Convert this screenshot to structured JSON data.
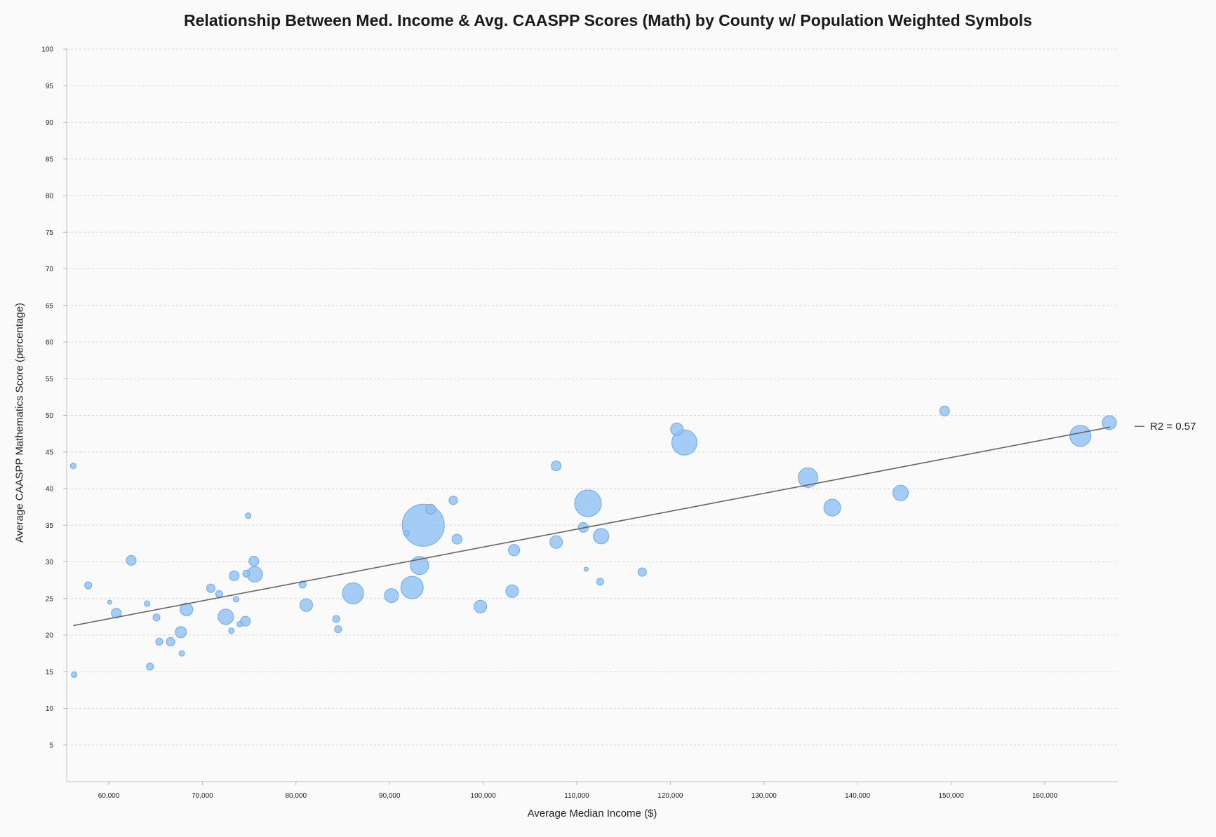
{
  "chart_data": {
    "type": "scatter",
    "title": "Relationship Between Med. Income & Avg. CAASPP Scores (Math) by County w/ Population Weighted Symbols",
    "xlabel": "Average Median Income ($)",
    "ylabel": "Average CAASPP Mathematics Score (percentage)",
    "xlim": [
      55500,
      167800
    ],
    "ylim": [
      0,
      100
    ],
    "x_ticks": [
      "60,000",
      "70,000",
      "80,000",
      "90,000",
      "100,000",
      "110,000",
      "120,000",
      "130,000",
      "140,000",
      "150,000",
      "160,000"
    ],
    "x_tick_values": [
      60000,
      70000,
      80000,
      90000,
      100000,
      110000,
      120000,
      130000,
      140000,
      150000,
      160000
    ],
    "y_ticks": [
      "5",
      "10",
      "15",
      "20",
      "25",
      "30",
      "35",
      "40",
      "45",
      "50",
      "55",
      "60",
      "65",
      "70",
      "75",
      "80",
      "85",
      "90",
      "95",
      "100"
    ],
    "y_tick_values": [
      5,
      10,
      15,
      20,
      25,
      30,
      35,
      40,
      45,
      50,
      55,
      60,
      65,
      70,
      75,
      80,
      85,
      90,
      95,
      100
    ],
    "grid": "horizontal dotted",
    "point_color": "#8fc1f2",
    "point_edge_color": "#6aa9ec",
    "trend_color": "#666666",
    "trendline": {
      "x": [
        56200,
        167000
      ],
      "y": [
        21.3,
        48.4
      ]
    },
    "r2_label": "R2 = 0.57",
    "points": [
      {
        "x": 56200,
        "y": 43.1,
        "size": 4
      },
      {
        "x": 56300,
        "y": 14.6,
        "size": 4
      },
      {
        "x": 57800,
        "y": 26.8,
        "size": 5
      },
      {
        "x": 60100,
        "y": 24.5,
        "size": 3
      },
      {
        "x": 60800,
        "y": 23.0,
        "size": 7
      },
      {
        "x": 62400,
        "y": 30.2,
        "size": 7
      },
      {
        "x": 64100,
        "y": 24.3,
        "size": 4
      },
      {
        "x": 64400,
        "y": 15.7,
        "size": 5
      },
      {
        "x": 65100,
        "y": 22.4,
        "size": 5
      },
      {
        "x": 65400,
        "y": 19.1,
        "size": 5
      },
      {
        "x": 66600,
        "y": 19.1,
        "size": 6
      },
      {
        "x": 67700,
        "y": 20.4,
        "size": 8
      },
      {
        "x": 67800,
        "y": 17.5,
        "size": 4
      },
      {
        "x": 68300,
        "y": 23.5,
        "size": 9
      },
      {
        "x": 70900,
        "y": 26.4,
        "size": 6
      },
      {
        "x": 71800,
        "y": 25.6,
        "size": 5
      },
      {
        "x": 72500,
        "y": 22.5,
        "size": 11
      },
      {
        "x": 73100,
        "y": 20.6,
        "size": 4
      },
      {
        "x": 73400,
        "y": 28.1,
        "size": 7
      },
      {
        "x": 73600,
        "y": 24.9,
        "size": 4
      },
      {
        "x": 74000,
        "y": 21.5,
        "size": 4
      },
      {
        "x": 74600,
        "y": 21.9,
        "size": 7
      },
      {
        "x": 74700,
        "y": 28.4,
        "size": 5
      },
      {
        "x": 74900,
        "y": 36.3,
        "size": 4
      },
      {
        "x": 75500,
        "y": 30.1,
        "size": 7
      },
      {
        "x": 75600,
        "y": 28.3,
        "size": 11
      },
      {
        "x": 80700,
        "y": 26.9,
        "size": 5
      },
      {
        "x": 81100,
        "y": 24.1,
        "size": 9
      },
      {
        "x": 84300,
        "y": 22.2,
        "size": 5
      },
      {
        "x": 84500,
        "y": 20.8,
        "size": 5
      },
      {
        "x": 86100,
        "y": 25.7,
        "size": 15
      },
      {
        "x": 90200,
        "y": 25.4,
        "size": 10
      },
      {
        "x": 91800,
        "y": 33.9,
        "size": 4
      },
      {
        "x": 92400,
        "y": 26.5,
        "size": 16
      },
      {
        "x": 93200,
        "y": 29.5,
        "size": 13
      },
      {
        "x": 93600,
        "y": 35.0,
        "size": 30
      },
      {
        "x": 94400,
        "y": 37.2,
        "size": 7
      },
      {
        "x": 96800,
        "y": 38.4,
        "size": 6
      },
      {
        "x": 97200,
        "y": 33.1,
        "size": 7
      },
      {
        "x": 99700,
        "y": 23.9,
        "size": 9
      },
      {
        "x": 103100,
        "y": 26.0,
        "size": 9
      },
      {
        "x": 103300,
        "y": 31.6,
        "size": 8
      },
      {
        "x": 107800,
        "y": 43.1,
        "size": 7
      },
      {
        "x": 107800,
        "y": 32.7,
        "size": 9
      },
      {
        "x": 110700,
        "y": 34.7,
        "size": 7
      },
      {
        "x": 111000,
        "y": 29.0,
        "size": 3
      },
      {
        "x": 111200,
        "y": 38.0,
        "size": 19
      },
      {
        "x": 112500,
        "y": 27.3,
        "size": 5
      },
      {
        "x": 112600,
        "y": 33.5,
        "size": 11
      },
      {
        "x": 117000,
        "y": 28.6,
        "size": 6
      },
      {
        "x": 120700,
        "y": 48.1,
        "size": 9
      },
      {
        "x": 121500,
        "y": 46.3,
        "size": 18
      },
      {
        "x": 134700,
        "y": 41.5,
        "size": 14
      },
      {
        "x": 137300,
        "y": 37.4,
        "size": 12
      },
      {
        "x": 144600,
        "y": 39.4,
        "size": 11
      },
      {
        "x": 149300,
        "y": 50.6,
        "size": 7
      },
      {
        "x": 163800,
        "y": 47.2,
        "size": 15
      },
      {
        "x": 166900,
        "y": 49.0,
        "size": 10
      }
    ]
  }
}
